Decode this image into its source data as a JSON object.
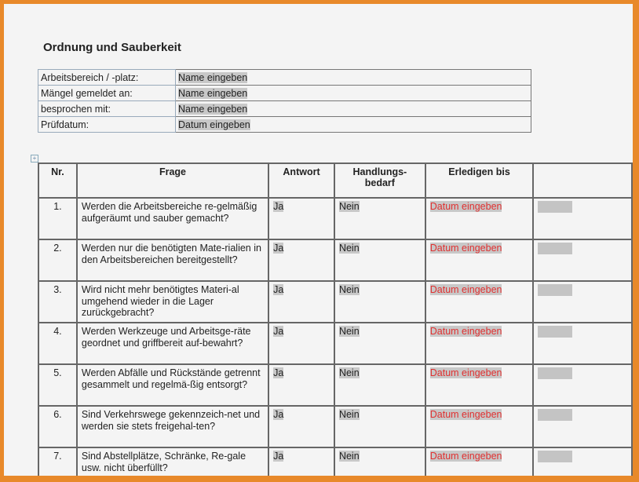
{
  "title": "Ordnung und Sauberkeit",
  "info": [
    {
      "label": "Arbeitsbereich / -platz:",
      "value": "Name eingeben"
    },
    {
      "label": "Mängel gemeldet an:",
      "value": "Name eingeben"
    },
    {
      "label": "besprochen mit:",
      "value": "Name eingeben"
    },
    {
      "label": "Prüfdatum:",
      "value": "Datum eingeben"
    }
  ],
  "headers": {
    "nr": "Nr.",
    "frage": "Frage",
    "antwort": "Antwort",
    "handlung": "Handlungs-bedarf",
    "erledigen": "Erledigen bis",
    "extra": ""
  },
  "rows": [
    {
      "nr": "1.",
      "frage": "Werden die Arbeitsbereiche re-gelmäßig aufgeräumt und sauber gemacht?",
      "antwort": "Ja",
      "handlung": "Nein",
      "erledigen": "Datum eingeben"
    },
    {
      "nr": "2.",
      "frage": "Werden nur die benötigten Mate-rialien in den Arbeitsbereichen bereitgestellt?",
      "antwort": "Ja",
      "handlung": "Nein",
      "erledigen": "Datum eingeben"
    },
    {
      "nr": "3.",
      "frage": "Wird nicht mehr benötigtes Materi-al umgehend wieder in die Lager zurückgebracht?",
      "antwort": "Ja",
      "handlung": "Nein",
      "erledigen": "Datum eingeben"
    },
    {
      "nr": "4.",
      "frage": "Werden Werkzeuge und Arbeitsge-räte geordnet und griffbereit auf-bewahrt?",
      "antwort": "Ja",
      "handlung": "Nein",
      "erledigen": "Datum eingeben"
    },
    {
      "nr": "5.",
      "frage": "Werden Abfälle und Rückstände getrennt gesammelt und regelmä-ßig entsorgt?",
      "antwort": "Ja",
      "handlung": "Nein",
      "erledigen": "Datum eingeben"
    },
    {
      "nr": "6.",
      "frage": "Sind Verkehrswege gekennzeich-net und werden sie stets freigehal-ten?",
      "antwort": "Ja",
      "handlung": "Nein",
      "erledigen": "Datum eingeben"
    },
    {
      "nr": "7.",
      "frage": "Sind Abstellplätze, Schränke, Re-gale usw. nicht überfüllt?",
      "antwort": "Ja",
      "handlung": "Nein",
      "erledigen": "Datum eingeben"
    }
  ],
  "colors": {
    "frame": "#e8892a",
    "placeholder_red": "#e03030",
    "field_gray": "#c8c8c8"
  }
}
